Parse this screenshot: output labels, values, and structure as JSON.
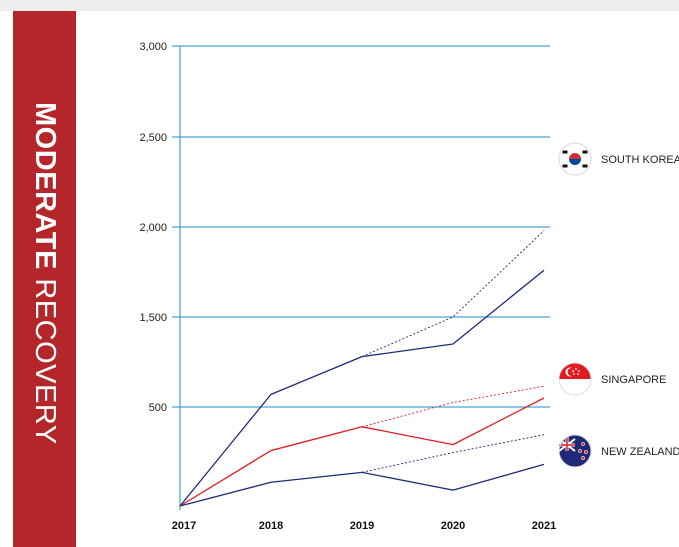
{
  "side_title": {
    "bold": "MODERATE",
    "light": "RECOVERY"
  },
  "colors": {
    "band": "#b5262a",
    "grid": "#1a8fc9",
    "korea": "#1e2a78",
    "singapore": "#e11b22",
    "new_zealand": "#1e2a78"
  },
  "chart_data": {
    "type": "line",
    "title": "",
    "xlabel": "",
    "ylabel": "",
    "x": [
      "2017",
      "2018",
      "2019",
      "2020",
      "2021"
    ],
    "y_ticks": [
      {
        "label": "3,000",
        "value": 3000
      },
      {
        "label": "2,500",
        "value": 2500
      },
      {
        "label": "2,000",
        "value": 2000
      },
      {
        "label": "1,500",
        "value": 1500
      },
      {
        "label": "500",
        "value": 500
      }
    ],
    "ylim": [
      0,
      3000
    ],
    "grid": true,
    "series": [
      {
        "name": "SOUTH KOREA",
        "values": [
          0,
          640,
          1060,
          1200,
          1760
        ],
        "trend": [
          null,
          null,
          1060,
          1500,
          1980
        ],
        "color": "#1e2a78",
        "flag": "south-korea-flag-icon"
      },
      {
        "name": "SINGAPORE",
        "values": [
          0,
          280,
          400,
          310,
          600
        ],
        "trend": [
          null,
          null,
          400,
          550,
          730
        ],
        "color": "#e11b22",
        "flag": "singapore-flag-icon"
      },
      {
        "name": "NEW ZEALAND",
        "values": [
          0,
          120,
          170,
          80,
          210
        ],
        "trend": [
          null,
          null,
          170,
          270,
          360
        ],
        "color": "#1e2a78",
        "flag": "new-zealand-flag-icon"
      }
    ]
  }
}
